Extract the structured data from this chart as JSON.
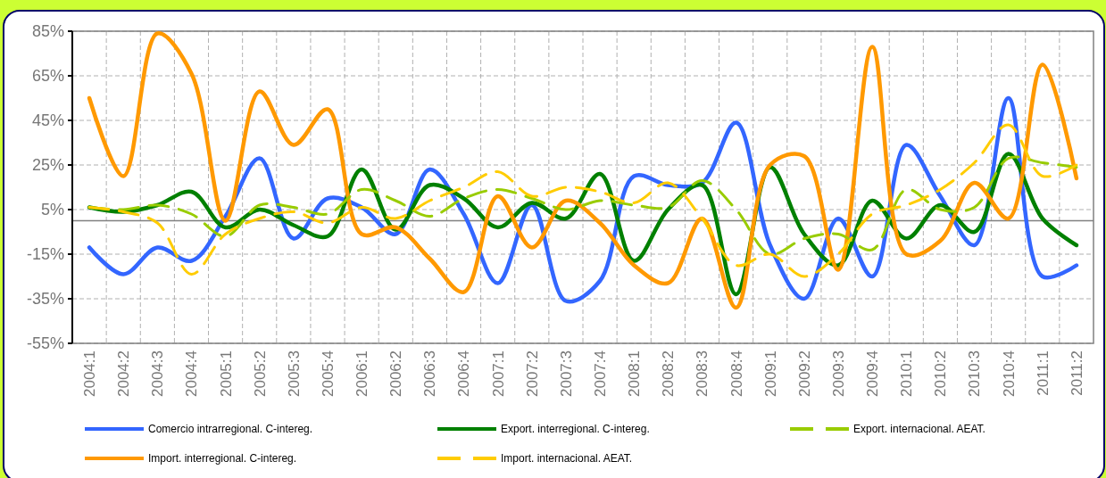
{
  "chart_data": {
    "type": "line",
    "categories": [
      "2004:1",
      "2004:2",
      "2004:3",
      "2004:4",
      "2005:1",
      "2005:2",
      "2005:3",
      "2005:4",
      "2006:1",
      "2006:2",
      "2006:3",
      "2006:4",
      "2007:1",
      "2007:2",
      "2007:3",
      "2007:4",
      "2008:1",
      "2008:2",
      "2008:3",
      "2008:4",
      "2009:1",
      "2009:2",
      "2009:3",
      "2009:4",
      "2010:1",
      "2010:2",
      "2010:3",
      "2010:4",
      "2011:1",
      "2011:2"
    ],
    "series": [
      {
        "name": "Comercio intrarregional. C-intereg.",
        "color": "#3366ff",
        "line_style": "solid",
        "values": [
          -12,
          -24,
          -12,
          -18,
          2,
          28,
          -8,
          10,
          6,
          -6,
          23,
          3,
          -28,
          7,
          -36,
          -27,
          20,
          16,
          17,
          44,
          -11,
          -35,
          1,
          -25,
          34,
          11,
          -11,
          55,
          -25,
          -20
        ]
      },
      {
        "name": "Export. interregional. C-intereg.",
        "color": "#008000",
        "line_style": "solid",
        "values": [
          6,
          4,
          7,
          13,
          -3,
          5,
          -2,
          -7,
          23,
          -4,
          16,
          10,
          -3,
          8,
          1,
          21,
          -18,
          5,
          16,
          -33,
          24,
          -6,
          -20,
          9,
          -8,
          7,
          -5,
          30,
          1,
          -11
        ]
      },
      {
        "name": "Export. internacional. AEAT.",
        "color": "#99cc00",
        "line_style": "dashed",
        "values": [
          6,
          5,
          7,
          3,
          -7,
          7,
          6,
          3,
          14,
          9,
          2,
          10,
          14,
          10,
          5,
          9,
          7,
          6,
          18,
          5,
          -15,
          -8,
          -6,
          -13,
          14,
          5,
          6,
          28,
          26,
          24
        ]
      },
      {
        "name": "Import. interregional. C-intereg.",
        "color": "#ff9900",
        "line_style": "solid",
        "values": [
          55,
          20,
          84,
          66,
          0,
          58,
          34,
          50,
          -6,
          -3,
          -17,
          -32,
          11,
          -12,
          9,
          -1,
          -20,
          -28,
          1,
          -39,
          25,
          29,
          -22,
          78,
          -15,
          -9,
          17,
          1,
          70,
          19
        ]
      },
      {
        "name": "Import. internacional. AEAT.",
        "color": "#ffcc00",
        "line_style": "dashed",
        "values": [
          6,
          4,
          -1,
          -24,
          -6,
          1,
          4,
          -1,
          6,
          1,
          9,
          15,
          22,
          11,
          15,
          13,
          8,
          17,
          1,
          -20,
          -15,
          -25,
          -15,
          3,
          7,
          14,
          26,
          43,
          20,
          25
        ]
      }
    ],
    "ylim": [
      -55,
      85
    ],
    "yticks": [
      {
        "value": -55,
        "label": "-55%"
      },
      {
        "value": -35,
        "label": "-35%"
      },
      {
        "value": -15,
        "label": "-15%"
      },
      {
        "value": 5,
        "label": "5%"
      },
      {
        "value": 25,
        "label": "25%"
      },
      {
        "value": 45,
        "label": "45%"
      },
      {
        "value": 65,
        "label": "65%"
      },
      {
        "value": 85,
        "label": "85%"
      }
    ],
    "grid": true,
    "legend": "bottom",
    "ref_lines": [
      {
        "axis": "y",
        "value": 0,
        "color": "#808080"
      }
    ]
  }
}
